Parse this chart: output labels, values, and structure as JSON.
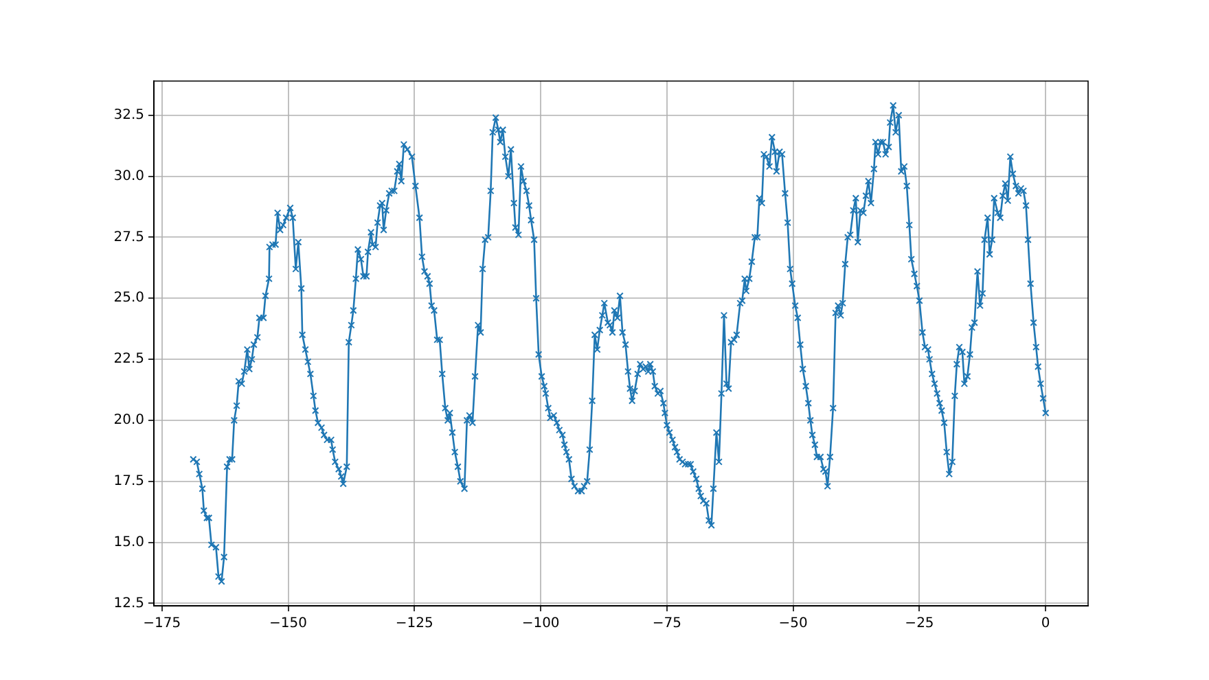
{
  "chart_data": {
    "type": "line",
    "marker": "cross",
    "grid": true,
    "line_style": "solid",
    "xlim": [
      -176.6,
      8.4
    ],
    "ylim": [
      12.4,
      33.9
    ],
    "xticks": [
      {
        "value": -175,
        "label": "−175"
      },
      {
        "value": -150,
        "label": "−150"
      },
      {
        "value": -125,
        "label": "−125"
      },
      {
        "value": -100,
        "label": "−100"
      },
      {
        "value": -75,
        "label": "−75"
      },
      {
        "value": -50,
        "label": "−50"
      },
      {
        "value": -25,
        "label": "−25"
      },
      0
    ],
    "yticks": [
      12.5,
      {
        "value": 15,
        "label": "15.0"
      },
      17.5,
      {
        "value": 20,
        "label": "20.0"
      },
      22.5,
      {
        "value": 25,
        "label": "25.0"
      },
      27.5,
      {
        "value": 30,
        "label": "30.0"
      },
      32.5
    ],
    "series": [
      {
        "color": "#1f77b4",
        "x": [
          -168.8,
          -168.1,
          -167.6,
          -167.0,
          -166.7,
          -166.1,
          -165.7,
          -165.2,
          -164.3,
          -163.8,
          -163.2,
          -162.7,
          -162.1,
          -161.6,
          -161.1,
          -160.7,
          -160.2,
          -159.8,
          -159.2,
          -158.7,
          -158.1,
          -157.7,
          -157.2,
          -156.8,
          -156.1,
          -155.7,
          -154.9,
          -154.5,
          -153.8,
          -153.7,
          -153.1,
          -152.5,
          -152.1,
          -151.6,
          -151.0,
          -150.4,
          -149.6,
          -149.1,
          -148.5,
          -148.0,
          -147.4,
          -147.2,
          -146.6,
          -146.1,
          -145.6,
          -145.0,
          -144.6,
          -144.1,
          -143.4,
          -142.9,
          -142.3,
          -141.5,
          -141.2,
          -140.7,
          -140.0,
          -139.5,
          -139.1,
          -138.4,
          -138.0,
          -137.5,
          -137.1,
          -136.6,
          -136.2,
          -135.6,
          -135.1,
          -134.5,
          -134.2,
          -133.6,
          -133.3,
          -132.7,
          -132.3,
          -131.8,
          -131.4,
          -131.1,
          -130.6,
          -130.0,
          -129.5,
          -129.0,
          -128.4,
          -128.0,
          -127.6,
          -127.1,
          -126.4,
          -125.5,
          -124.8,
          -124.0,
          -123.5,
          -123.0,
          -122.4,
          -122.0,
          -121.6,
          -121.1,
          -120.5,
          -120.0,
          -119.5,
          -118.9,
          -118.4,
          -118.0,
          -117.5,
          -117.0,
          -116.4,
          -115.9,
          -115.1,
          -114.6,
          -114.1,
          -113.5,
          -113.0,
          -112.4,
          -111.9,
          -111.5,
          -111.0,
          -110.4,
          -109.9,
          -109.5,
          -108.9,
          -108.4,
          -108.0,
          -107.5,
          -107.0,
          -106.4,
          -105.9,
          -105.3,
          -105.0,
          -104.4,
          -103.9,
          -103.4,
          -102.8,
          -102.3,
          -101.9,
          -101.3,
          -100.9,
          -100.4,
          -99.8,
          -99.3,
          -99.0,
          -98.5,
          -98.1,
          -97.4,
          -96.8,
          -96.3,
          -95.7,
          -95.3,
          -94.9,
          -94.4,
          -93.9,
          -93.3,
          -92.6,
          -91.9,
          -91.4,
          -90.8,
          -90.3,
          -89.8,
          -89.3,
          -88.8,
          -88.3,
          -87.8,
          -87.4,
          -86.7,
          -86.3,
          -85.8,
          -85.4,
          -84.8,
          -84.3,
          -83.8,
          -83.2,
          -82.7,
          -82.3,
          -81.9,
          -81.4,
          -80.8,
          -80.3,
          -79.7,
          -79.2,
          -78.7,
          -78.3,
          -77.8,
          -77.4,
          -76.8,
          -76.3,
          -75.7,
          -75.4,
          -75.0,
          -74.5,
          -73.9,
          -73.4,
          -73.0,
          -72.5,
          -71.9,
          -71.4,
          -70.8,
          -70.3,
          -69.8,
          -69.2,
          -68.7,
          -68.3,
          -67.8,
          -67.2,
          -66.7,
          -66.2,
          -65.8,
          -65.2,
          -64.7,
          -64.2,
          -63.7,
          -63.2,
          -62.8,
          -62.3,
          -61.7,
          -61.2,
          -60.5,
          -60.1,
          -59.6,
          -59.3,
          -58.7,
          -58.2,
          -57.6,
          -57.1,
          -56.7,
          -56.2,
          -55.8,
          -55.3,
          -54.7,
          -54.2,
          -53.6,
          -53.3,
          -52.7,
          -52.2,
          -51.6,
          -51.1,
          -50.6,
          -50.2,
          -49.6,
          -49.1,
          -48.6,
          -48.1,
          -47.5,
          -47.0,
          -46.6,
          -46.2,
          -45.7,
          -45.3,
          -44.6,
          -44.0,
          -43.6,
          -43.2,
          -42.7,
          -42.1,
          -41.6,
          -41.1,
          -40.6,
          -40.2,
          -39.7,
          -39.2,
          -38.7,
          -38.1,
          -37.6,
          -37.2,
          -36.7,
          -36.1,
          -35.6,
          -35.1,
          -34.6,
          -34.0,
          -33.7,
          -33.2,
          -32.7,
          -32.2,
          -31.7,
          -31.1,
          -30.8,
          -30.2,
          -29.7,
          -29.1,
          -28.6,
          -28.0,
          -27.5,
          -27.0,
          -26.6,
          -26.0,
          -25.5,
          -25.0,
          -24.4,
          -23.9,
          -23.3,
          -23.0,
          -22.5,
          -22.0,
          -21.5,
          -21.0,
          -20.6,
          -20.1,
          -19.6,
          -19.1,
          -18.5,
          -18.0,
          -17.6,
          -17.1,
          -16.5,
          -16.1,
          -15.5,
          -15.0,
          -14.6,
          -14.1,
          -13.5,
          -13.0,
          -12.5,
          -12.1,
          -11.5,
          -11.1,
          -10.6,
          -10.2,
          -9.5,
          -9.0,
          -8.5,
          -8.0,
          -7.5,
          -7.0,
          -6.5,
          -5.9,
          -5.4,
          -4.9,
          -4.4,
          -3.9,
          -3.5,
          -3.0,
          -2.4,
          -1.9,
          -1.5,
          -1.0,
          -0.5,
          0
        ],
        "values": [
          18.4,
          18.3,
          17.8,
          17.2,
          16.3,
          16.0,
          16.0,
          14.9,
          14.8,
          13.6,
          13.4,
          14.4,
          18.1,
          18.4,
          18.4,
          20.0,
          20.6,
          21.6,
          21.5,
          22.0,
          22.9,
          22.1,
          22.5,
          23.1,
          23.4,
          24.2,
          24.2,
          25.1,
          25.8,
          27.1,
          27.2,
          27.2,
          28.5,
          27.8,
          28.0,
          28.3,
          28.7,
          28.3,
          26.2,
          27.3,
          25.4,
          23.5,
          22.9,
          22.4,
          21.9,
          21.0,
          20.4,
          19.9,
          19.7,
          19.4,
          19.2,
          19.2,
          18.8,
          18.3,
          18.0,
          17.7,
          17.4,
          18.1,
          23.2,
          23.9,
          24.5,
          25.8,
          27.0,
          26.6,
          25.9,
          25.9,
          26.9,
          27.7,
          27.2,
          27.1,
          28.1,
          28.8,
          28.9,
          27.8,
          28.6,
          29.3,
          29.4,
          29.4,
          30.2,
          30.5,
          29.8,
          31.3,
          31.1,
          30.8,
          29.6,
          28.3,
          26.7,
          26.1,
          25.9,
          25.6,
          24.7,
          24.5,
          23.3,
          23.3,
          21.9,
          20.5,
          20.0,
          20.3,
          19.5,
          18.7,
          18.1,
          17.5,
          17.2,
          20.0,
          20.2,
          19.9,
          21.8,
          23.9,
          23.6,
          26.2,
          27.4,
          27.5,
          29.4,
          31.8,
          32.4,
          31.9,
          31.4,
          31.9,
          30.8,
          30.0,
          31.1,
          28.9,
          27.9,
          27.6,
          30.4,
          29.8,
          29.4,
          28.8,
          28.2,
          27.4,
          25.0,
          22.7,
          21.8,
          21.4,
          21.1,
          20.5,
          20.1,
          20.2,
          19.9,
          19.6,
          19.4,
          19.0,
          18.7,
          18.4,
          17.6,
          17.3,
          17.1,
          17.1,
          17.3,
          17.5,
          18.8,
          20.8,
          23.5,
          22.9,
          23.7,
          24.3,
          24.8,
          24.0,
          23.9,
          23.6,
          24.5,
          24.2,
          25.1,
          23.6,
          23.1,
          22.0,
          21.3,
          20.8,
          21.2,
          21.9,
          22.3,
          22.1,
          22.2,
          22.0,
          22.3,
          22.0,
          21.4,
          21.1,
          21.2,
          20.7,
          20.3,
          19.8,
          19.5,
          19.2,
          18.9,
          18.7,
          18.4,
          18.3,
          18.2,
          18.2,
          18.2,
          17.9,
          17.6,
          17.2,
          16.9,
          16.7,
          16.6,
          15.9,
          15.7,
          17.2,
          19.5,
          18.3,
          21.1,
          24.3,
          21.5,
          21.3,
          23.2,
          23.3,
          23.5,
          24.8,
          24.9,
          25.8,
          25.3,
          25.8,
          26.5,
          27.5,
          27.5,
          29.1,
          28.9,
          30.9,
          30.8,
          30.4,
          31.6,
          31.0,
          30.2,
          31.0,
          30.9,
          29.3,
          28.1,
          26.2,
          25.6,
          24.7,
          24.2,
          23.1,
          22.1,
          21.4,
          20.7,
          20.0,
          19.4,
          19.0,
          18.5,
          18.5,
          18.0,
          17.9,
          17.3,
          18.5,
          20.5,
          24.4,
          24.7,
          24.3,
          24.8,
          26.4,
          27.5,
          27.6,
          28.6,
          29.1,
          27.3,
          28.6,
          28.5,
          29.2,
          29.8,
          28.9,
          30.3,
          31.4,
          30.9,
          31.4,
          31.4,
          30.9,
          31.2,
          32.2,
          32.9,
          31.8,
          32.5,
          30.2,
          30.4,
          29.6,
          28.0,
          26.6,
          26.0,
          25.5,
          24.9,
          23.6,
          23.0,
          22.9,
          22.5,
          21.9,
          21.5,
          21.1,
          20.7,
          20.4,
          19.9,
          18.7,
          17.8,
          18.3,
          21.0,
          22.3,
          23.0,
          22.8,
          21.5,
          21.8,
          22.7,
          23.8,
          24.0,
          26.1,
          24.7,
          25.2,
          27.4,
          28.3,
          26.8,
          27.4,
          29.1,
          28.5,
          28.3,
          29.2,
          29.7,
          29.0,
          30.8,
          30.1,
          29.6,
          29.3,
          29.5,
          29.4,
          28.8,
          27.4,
          25.6,
          24.0,
          23.0,
          22.2,
          21.5,
          20.9,
          20.3
        ]
      }
    ]
  }
}
